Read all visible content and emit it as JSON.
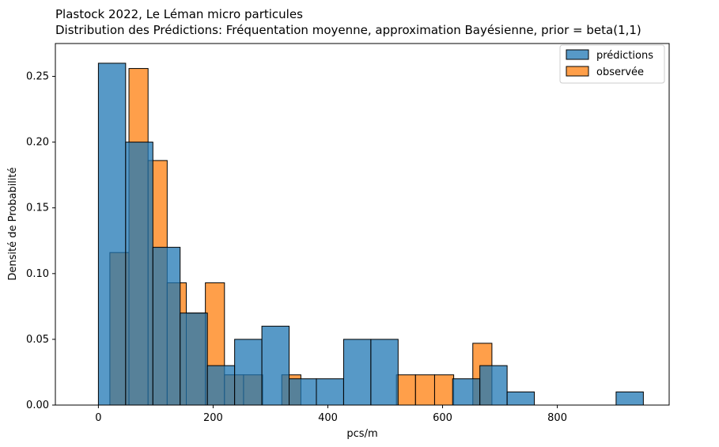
{
  "chart_data": {
    "type": "bar",
    "title": "Plastock 2022, Le Léman micro particules",
    "subtitle": "Distribution des Prédictions: Fréquentation moyenne,  approximation Bayésienne, prior = beta(1,1)",
    "xlabel": "pcs/m",
    "ylabel": "Densité de Probabilité",
    "xlim": [
      -75,
      995
    ],
    "ylim": [
      0,
      0.275
    ],
    "xticks": [
      0,
      200,
      400,
      600,
      800
    ],
    "xtick_labels": [
      "0",
      "200",
      "400",
      "600",
      "800"
    ],
    "yticks": [
      0.0,
      0.05,
      0.1,
      0.15,
      0.2,
      0.25
    ],
    "ytick_labels": [
      "0.00",
      "0.05",
      "0.10",
      "0.15",
      "0.20",
      "0.25"
    ],
    "grid": false,
    "legend_position": "top-right",
    "series": [
      {
        "name": "observée",
        "color": "#ff7f0e",
        "bin_edges": [
          20,
          53.3,
          86.6,
          119.9,
          153.2,
          186.5,
          219.8,
          253.1,
          286.4,
          319.7,
          353,
          386.3,
          419.6,
          452.9,
          486.2,
          519.5,
          552.8,
          586.1,
          619.4,
          652.7,
          686
        ],
        "values": [
          0.116,
          0.256,
          0.186,
          0.093,
          0.07,
          0.093,
          0.023,
          0.023,
          0.0,
          0.023,
          0.0,
          0.0,
          0.0,
          0.0,
          0.0,
          0.023,
          0.023,
          0.023,
          0.0,
          0.047
        ]
      },
      {
        "name": "prédictions",
        "color": "#1f77b4",
        "bin_edges": [
          0,
          47.5,
          95,
          142.5,
          190,
          237.5,
          285,
          332.5,
          380,
          427.5,
          475,
          522.5,
          570,
          617.5,
          665,
          712.5,
          760,
          807.5,
          855,
          902.5,
          950
        ],
        "values": [
          0.26,
          0.2,
          0.12,
          0.07,
          0.03,
          0.05,
          0.06,
          0.02,
          0.02,
          0.05,
          0.05,
          0.0,
          0.0,
          0.02,
          0.03,
          0.01,
          0.0,
          0.0,
          0.0,
          0.01
        ]
      }
    ],
    "legend": [
      "prédictions",
      "observée"
    ]
  }
}
